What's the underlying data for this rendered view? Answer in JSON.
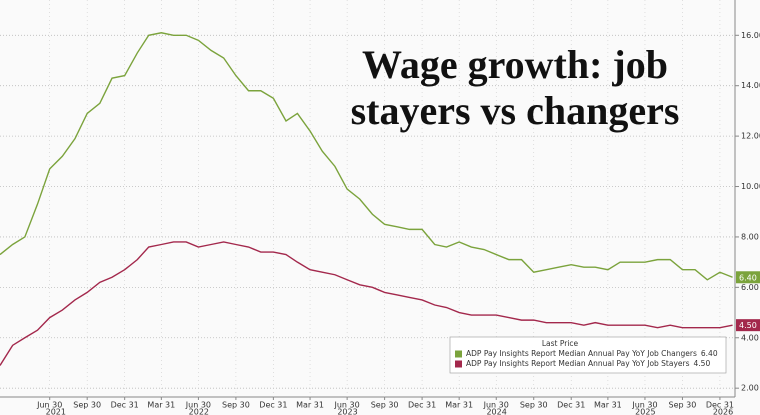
{
  "chart_data": {
    "type": "line",
    "title": "Wage growth: job stayers vs changers",
    "legend_title": "Last Price",
    "x": [
      "2021-02-28",
      "2021-03-31",
      "2021-04-30",
      "2021-05-31",
      "2021-06-30",
      "2021-07-31",
      "2021-08-31",
      "2021-09-30",
      "2021-10-31",
      "2021-11-30",
      "2021-12-31",
      "2022-01-31",
      "2022-02-28",
      "2022-03-31",
      "2022-04-30",
      "2022-05-31",
      "2022-06-30",
      "2022-07-31",
      "2022-08-31",
      "2022-09-30",
      "2022-10-31",
      "2022-11-30",
      "2022-12-31",
      "2023-01-31",
      "2023-02-28",
      "2023-03-31",
      "2023-04-30",
      "2023-05-31",
      "2023-06-30",
      "2023-07-31",
      "2023-08-31",
      "2023-09-30",
      "2023-10-31",
      "2023-11-30",
      "2023-12-31",
      "2024-01-31",
      "2024-02-29",
      "2024-03-31",
      "2024-04-30",
      "2024-05-31",
      "2024-06-30",
      "2024-07-31",
      "2024-08-31",
      "2024-09-30",
      "2024-10-31",
      "2024-11-30",
      "2024-12-31",
      "2025-01-31",
      "2025-02-28",
      "2025-03-31",
      "2025-04-30",
      "2025-05-31",
      "2025-06-30",
      "2025-07-31",
      "2025-08-31",
      "2025-09-30",
      "2025-10-31",
      "2025-11-30",
      "2025-12-31",
      "2026-01-31"
    ],
    "series": [
      {
        "name": "ADP Pay Insights Report Median Annual Pay YoY Job Changers",
        "color": "#7ba33c",
        "last_label": "6.40",
        "values": [
          7.3,
          7.7,
          8.0,
          9.3,
          10.7,
          11.2,
          11.9,
          12.9,
          13.3,
          14.3,
          14.4,
          15.3,
          16.0,
          16.1,
          16.0,
          16.0,
          15.8,
          15.4,
          15.1,
          14.4,
          13.8,
          13.8,
          13.5,
          12.6,
          12.9,
          12.2,
          11.4,
          10.8,
          9.9,
          9.5,
          8.9,
          8.5,
          8.4,
          8.3,
          8.3,
          7.7,
          7.6,
          7.8,
          7.6,
          7.5,
          7.3,
          7.1,
          7.1,
          6.6,
          6.7,
          6.8,
          6.9,
          6.8,
          6.8,
          6.7,
          7.0,
          7.0,
          7.0,
          7.1,
          7.1,
          6.7,
          6.7,
          6.3,
          6.6,
          6.4
        ]
      },
      {
        "name": "ADP Pay Insights Report Median Annual Pay YoY Job Stayers",
        "color": "#a3284c",
        "last_label": "4.50",
        "values": [
          2.9,
          3.7,
          4.0,
          4.3,
          4.8,
          5.1,
          5.5,
          5.8,
          6.2,
          6.4,
          6.7,
          7.1,
          7.6,
          7.7,
          7.8,
          7.8,
          7.6,
          7.7,
          7.8,
          7.7,
          7.6,
          7.4,
          7.4,
          7.3,
          7.0,
          6.7,
          6.6,
          6.5,
          6.3,
          6.1,
          6.0,
          5.8,
          5.7,
          5.6,
          5.5,
          5.3,
          5.2,
          5.0,
          4.9,
          4.9,
          4.9,
          4.8,
          4.7,
          4.7,
          4.6,
          4.6,
          4.6,
          4.5,
          4.6,
          4.5,
          4.5,
          4.5,
          4.5,
          4.4,
          4.5,
          4.4,
          4.4,
          4.4,
          4.4,
          4.5
        ]
      }
    ],
    "xlim": [
      "2021-02-28",
      "2026-02-06"
    ],
    "xticks": [
      {
        "value": "2021-06-30",
        "label": "Jun 30"
      },
      {
        "value": "2021-09-30",
        "label": "Sep 30"
      },
      {
        "value": "2021-12-31",
        "label": "Dec 31"
      },
      {
        "value": "2022-03-31",
        "label": "Mar 31"
      },
      {
        "value": "2022-06-30",
        "label": "Jun 30"
      },
      {
        "value": "2022-09-30",
        "label": "Sep 30"
      },
      {
        "value": "2022-12-31",
        "label": "Dec 31"
      },
      {
        "value": "2023-03-31",
        "label": "Mar 31"
      },
      {
        "value": "2023-06-30",
        "label": "Jun 30"
      },
      {
        "value": "2023-09-30",
        "label": "Sep 30"
      },
      {
        "value": "2023-12-31",
        "label": "Dec 31"
      },
      {
        "value": "2024-03-31",
        "label": "Mar 31"
      },
      {
        "value": "2024-06-30",
        "label": "Jun 30"
      },
      {
        "value": "2024-09-30",
        "label": "Sep 30"
      },
      {
        "value": "2024-12-31",
        "label": "Dec 31"
      },
      {
        "value": "2025-03-31",
        "label": "Mar 31"
      },
      {
        "value": "2025-06-30",
        "label": "Jun 30"
      },
      {
        "value": "2025-09-30",
        "label": "Sep 30"
      },
      {
        "value": "2025-12-31",
        "label": "Dec 31"
      }
    ],
    "year_ticks": [
      {
        "value": "2021-07-15",
        "label": "2021"
      },
      {
        "value": "2022-07-01",
        "label": "2022"
      },
      {
        "value": "2023-07-01",
        "label": "2023"
      },
      {
        "value": "2024-07-01",
        "label": "2024"
      },
      {
        "value": "2025-07-01",
        "label": "2025"
      },
      {
        "value": "2026-01-15",
        "label": "2026"
      }
    ],
    "ylim": [
      1.65,
      17.4
    ],
    "yticks": [
      {
        "value": 2,
        "label": "2.00"
      },
      {
        "value": 4,
        "label": "4.00"
      },
      {
        "value": 6,
        "label": "6.00"
      },
      {
        "value": 8,
        "label": "8.00"
      },
      {
        "value": 10,
        "label": "10.00"
      },
      {
        "value": 12,
        "label": "12.00"
      },
      {
        "value": 14,
        "label": "14.00"
      },
      {
        "value": 16,
        "label": "16.00"
      }
    ],
    "grid": true
  }
}
